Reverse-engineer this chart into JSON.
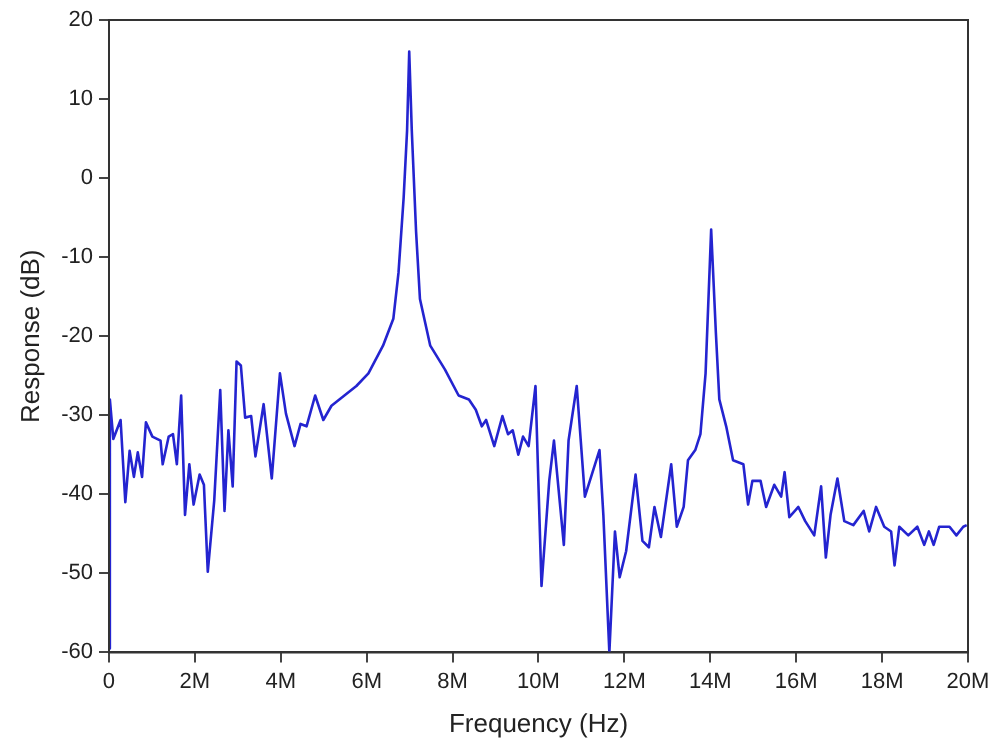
{
  "chart_data": {
    "type": "line",
    "xlabel": "Frequency (Hz)",
    "ylabel": "Response (dB)",
    "xlim": [
      0,
      20000000
    ],
    "ylim": [
      -60,
      20
    ],
    "xticks": [
      0,
      {
        "value": 2000000,
        "label": "2M"
      },
      {
        "value": 4000000,
        "label": "4M"
      },
      {
        "value": 6000000,
        "label": "6M"
      },
      {
        "value": 8000000,
        "label": "8M"
      },
      {
        "value": 10000000,
        "label": "10M"
      },
      {
        "value": 12000000,
        "label": "12M"
      },
      {
        "value": 14000000,
        "label": "14M"
      },
      {
        "value": 16000000,
        "label": "16M"
      },
      {
        "value": 18000000,
        "label": "18M"
      },
      {
        "value": 20000000,
        "label": "20M"
      }
    ],
    "yticks": [
      -60,
      -50,
      -40,
      -30,
      -20,
      -10,
      0,
      10,
      20
    ],
    "grid": false,
    "legend": false,
    "marker": "none",
    "line_style": "solid",
    "series": [
      {
        "color": "#2424d0",
        "x": [
          0,
          20000,
          100000,
          270000,
          380000,
          480000,
          580000,
          670000,
          770000,
          860000,
          1010000,
          1200000,
          1250000,
          1390000,
          1490000,
          1580000,
          1680000,
          1770000,
          1870000,
          1970000,
          2110000,
          2210000,
          2300000,
          2450000,
          2590000,
          2690000,
          2780000,
          2880000,
          2970000,
          3070000,
          3170000,
          3310000,
          3410000,
          3600000,
          3790000,
          3980000,
          4120000,
          4320000,
          4460000,
          4600000,
          4800000,
          4990000,
          5180000,
          5760000,
          6040000,
          6380000,
          6620000,
          6740000,
          6860000,
          6940000,
          6990000,
          7050000,
          7150000,
          7240000,
          7480000,
          7820000,
          8140000,
          8380000,
          8540000,
          8680000,
          8780000,
          8970000,
          9160000,
          9290000,
          9400000,
          9530000,
          9640000,
          9770000,
          9930000,
          10070000,
          10250000,
          10360000,
          10590000,
          10700000,
          10890000,
          11080000,
          11420000,
          11510000,
          11650000,
          11780000,
          11890000,
          12040000,
          12260000,
          12420000,
          12570000,
          12700000,
          12850000,
          13090000,
          13220000,
          13380000,
          13480000,
          13650000,
          13770000,
          13890000,
          14020000,
          14130000,
          14210000,
          14370000,
          14530000,
          14770000,
          14880000,
          14980000,
          15170000,
          15300000,
          15490000,
          15650000,
          15730000,
          15840000,
          16050000,
          16210000,
          16420000,
          16580000,
          16690000,
          16800000,
          16960000,
          17120000,
          17330000,
          17570000,
          17700000,
          17860000,
          18050000,
          18210000,
          18290000,
          18400000,
          18610000,
          18820000,
          18980000,
          19090000,
          19200000,
          19330000,
          19570000,
          19730000,
          19890000,
          19970000
        ],
        "values": [
          -59.5,
          -28,
          -33,
          -30.6,
          -41,
          -34.5,
          -37.8,
          -34.7,
          -37.8,
          -30.9,
          -32.7,
          -33.2,
          -36.2,
          -32.7,
          -32.4,
          -36.2,
          -27.5,
          -42.6,
          -36.2,
          -41.3,
          -37.5,
          -38.8,
          -49.8,
          -40.8,
          -26.8,
          -42.1,
          -31.9,
          -39,
          -23.2,
          -23.7,
          -30.3,
          -30.1,
          -35.2,
          -28.6,
          -38,
          -24.7,
          -29.8,
          -33.9,
          -31.1,
          -31.4,
          -27.5,
          -30.6,
          -28.8,
          -26.3,
          -24.7,
          -21.2,
          -17.8,
          -12,
          -2.5,
          6,
          16,
          6,
          -6.8,
          -15.3,
          -21.2,
          -24.2,
          -27.5,
          -28,
          -29.3,
          -31.4,
          -30.6,
          -33.9,
          -30.1,
          -32.4,
          -31.9,
          -35,
          -32.7,
          -33.9,
          -26.3,
          -51.6,
          -38.3,
          -33.2,
          -46.4,
          -33.2,
          -26.3,
          -40.3,
          -34.4,
          -42.6,
          -60,
          -44.7,
          -50.5,
          -47.2,
          -37.5,
          -45.9,
          -46.7,
          -41.6,
          -45.4,
          -36.2,
          -44.1,
          -41.6,
          -35.7,
          -34.4,
          -32.4,
          -24.7,
          -6.5,
          -19.6,
          -28,
          -31.4,
          -35.7,
          -36.2,
          -41.3,
          -38.3,
          -38.3,
          -41.6,
          -38.8,
          -40.3,
          -37.2,
          -42.9,
          -41.6,
          -43.4,
          -45.2,
          -39,
          -48,
          -42.6,
          -38,
          -43.4,
          -43.9,
          -42.1,
          -44.7,
          -41.6,
          -44.1,
          -44.7,
          -49,
          -44.1,
          -45.2,
          -44.1,
          -46.4,
          -44.7,
          -46.4,
          -44.1,
          -44.1,
          -45.2,
          -44.1,
          -43.9
        ]
      }
    ]
  }
}
